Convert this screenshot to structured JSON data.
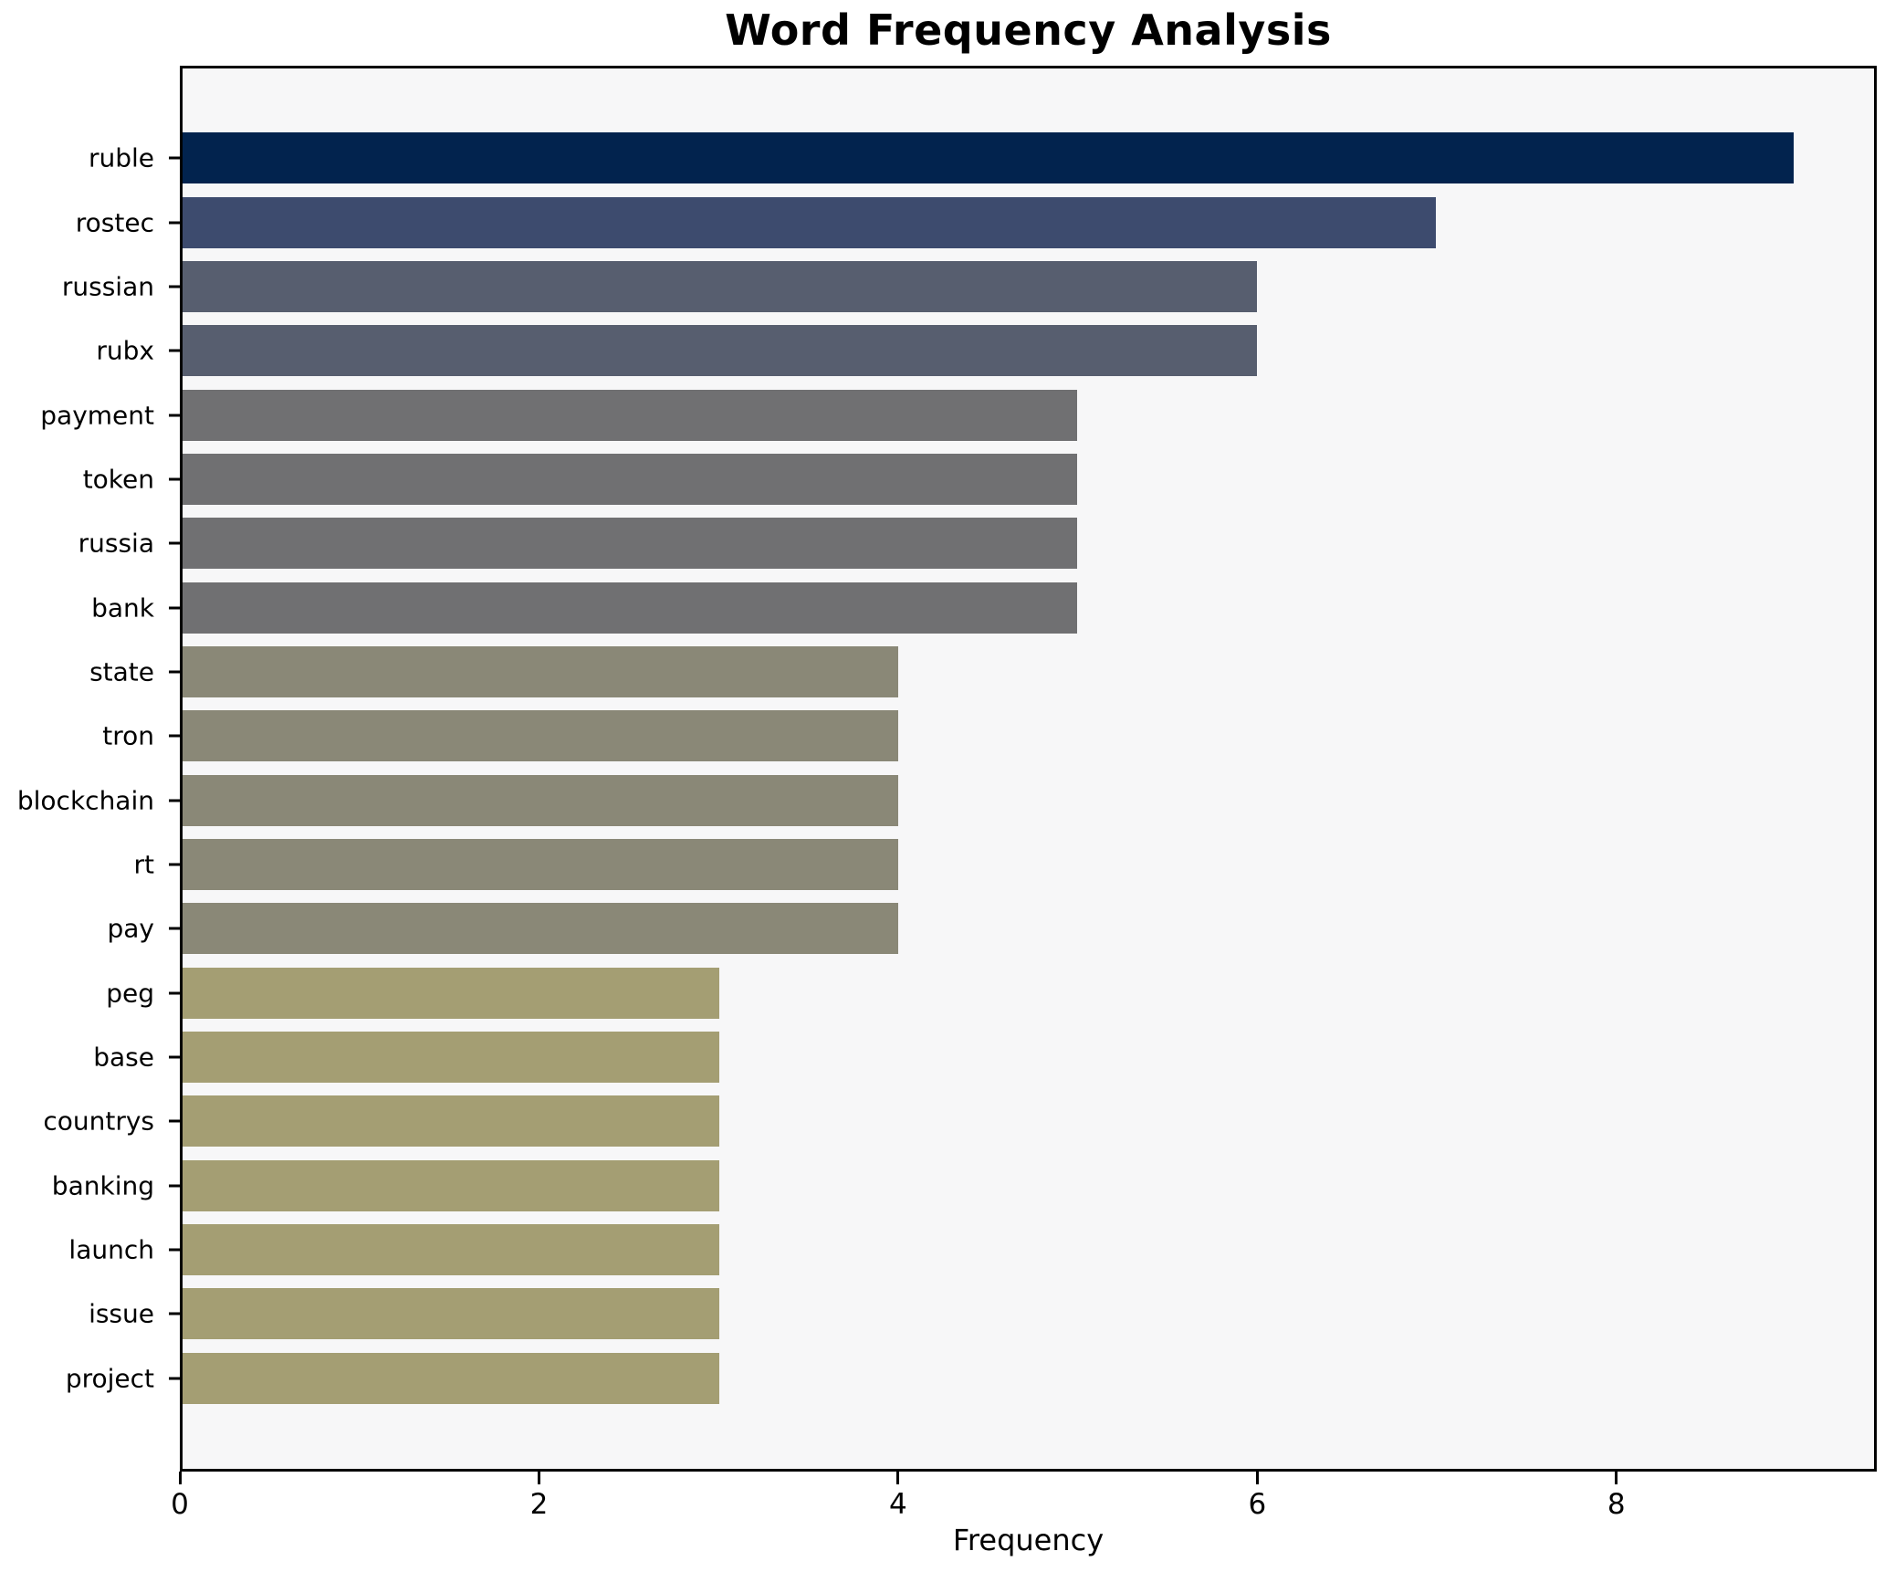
{
  "chart_data": {
    "type": "bar",
    "orientation": "horizontal",
    "title": "Word Frequency Analysis",
    "xlabel": "Frequency",
    "ylabel": "",
    "categories": [
      "ruble",
      "rostec",
      "russian",
      "rubx",
      "payment",
      "token",
      "russia",
      "bank",
      "state",
      "tron",
      "blockchain",
      "rt",
      "pay",
      "peg",
      "base",
      "countrys",
      "banking",
      "launch",
      "issue",
      "project"
    ],
    "values": [
      9,
      7,
      6,
      6,
      5,
      5,
      5,
      5,
      4,
      4,
      4,
      4,
      4,
      3,
      3,
      3,
      3,
      3,
      3,
      3
    ],
    "bar_colors": [
      "#02234e",
      "#3d4b6e",
      "#575e6f",
      "#575e6f",
      "#707072",
      "#707072",
      "#707072",
      "#707072",
      "#8a8877",
      "#8a8877",
      "#8a8877",
      "#8a8877",
      "#8a8877",
      "#a49e73",
      "#a49e73",
      "#a49e73",
      "#a49e73",
      "#a49e73",
      "#a49e73",
      "#a49e73"
    ],
    "colormap": "cividis",
    "xlim": [
      0,
      9.45
    ],
    "xticks": [
      0,
      2,
      4,
      6,
      8
    ],
    "grid": false,
    "legend_position": "none",
    "plot_background": "#f7f7f8",
    "figure_background": "#ffffff",
    "spine_color": "#000000"
  }
}
